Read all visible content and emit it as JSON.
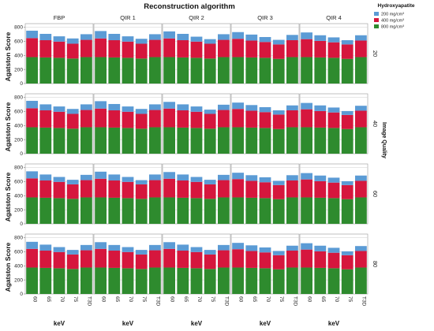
{
  "chart_data": {
    "type": "bar",
    "stacked": true,
    "title": "Reconstruction algorithm",
    "column_facets": [
      "FBP",
      "QIR 1",
      "QIR 2",
      "QIR 3",
      "QIR 4"
    ],
    "row_facets": [
      "20",
      "40",
      "60",
      "80"
    ],
    "row_facet_label": "Image Quality",
    "categories": [
      "60",
      "65",
      "70",
      "75",
      "T3D"
    ],
    "xlabel": "keV",
    "ylabel": "Agatston Score",
    "ylim": [
      0,
      850
    ],
    "yticks": [
      0,
      200,
      400,
      600,
      800
    ],
    "grid": true,
    "legend": {
      "title": "Hydroxyapatite",
      "position": "top-right",
      "entries": [
        {
          "name": "200 mg/cm³",
          "color": "#5b9bd5"
        },
        {
          "name": "400 mg/cm³",
          "color": "#d6163d"
        },
        {
          "name": "800 mg/cm³",
          "color": "#2e8b2e"
        }
      ]
    },
    "series_order_bottom_to_top": [
      "800 mg/cm³",
      "400 mg/cm³",
      "200 mg/cm³"
    ],
    "panels": [
      [
        {
          "s800": [
            375,
            370,
            365,
            355,
            375
          ],
          "s400": [
            270,
            245,
            230,
            210,
            245
          ],
          "s200": [
            105,
            90,
            75,
            75,
            80
          ]
        },
        {
          "s800": [
            375,
            370,
            365,
            355,
            375
          ],
          "s400": [
            265,
            245,
            230,
            210,
            245
          ],
          "s200": [
            105,
            90,
            75,
            70,
            80
          ]
        },
        {
          "s800": [
            375,
            370,
            365,
            355,
            375
          ],
          "s400": [
            265,
            245,
            230,
            210,
            245
          ],
          "s200": [
            100,
            90,
            70,
            65,
            80
          ]
        },
        {
          "s800": [
            375,
            370,
            365,
            350,
            375
          ],
          "s400": [
            260,
            240,
            225,
            205,
            240
          ],
          "s200": [
            95,
            85,
            70,
            65,
            75
          ]
        },
        {
          "s800": [
            375,
            370,
            365,
            350,
            375
          ],
          "s400": [
            255,
            235,
            220,
            205,
            235
          ],
          "s200": [
            95,
            80,
            70,
            60,
            75
          ]
        }
      ],
      [
        {
          "s800": [
            375,
            370,
            365,
            355,
            375
          ],
          "s400": [
            270,
            245,
            230,
            210,
            245
          ],
          "s200": [
            105,
            85,
            75,
            70,
            80
          ]
        },
        {
          "s800": [
            375,
            370,
            365,
            355,
            375
          ],
          "s400": [
            265,
            245,
            230,
            210,
            245
          ],
          "s200": [
            105,
            90,
            75,
            70,
            80
          ]
        },
        {
          "s800": [
            375,
            370,
            365,
            355,
            375
          ],
          "s400": [
            265,
            245,
            230,
            210,
            245
          ],
          "s200": [
            95,
            85,
            75,
            60,
            75
          ]
        },
        {
          "s800": [
            375,
            370,
            365,
            350,
            375
          ],
          "s400": [
            260,
            240,
            225,
            205,
            240
          ],
          "s200": [
            90,
            80,
            70,
            60,
            70
          ]
        },
        {
          "s800": [
            375,
            370,
            365,
            350,
            375
          ],
          "s400": [
            255,
            235,
            220,
            200,
            235
          ],
          "s200": [
            90,
            80,
            70,
            55,
            70
          ]
        }
      ],
      [
        {
          "s800": [
            375,
            370,
            365,
            355,
            375
          ],
          "s400": [
            270,
            245,
            230,
            205,
            245
          ],
          "s200": [
            100,
            85,
            70,
            65,
            75
          ]
        },
        {
          "s800": [
            375,
            370,
            365,
            355,
            375
          ],
          "s400": [
            265,
            245,
            230,
            205,
            245
          ],
          "s200": [
            100,
            85,
            70,
            60,
            80
          ]
        },
        {
          "s800": [
            375,
            370,
            365,
            355,
            375
          ],
          "s400": [
            265,
            245,
            230,
            205,
            245
          ],
          "s200": [
            95,
            85,
            70,
            65,
            75
          ]
        },
        {
          "s800": [
            375,
            370,
            365,
            350,
            375
          ],
          "s400": [
            260,
            240,
            225,
            200,
            240
          ],
          "s200": [
            90,
            80,
            70,
            60,
            75
          ]
        },
        {
          "s800": [
            375,
            370,
            365,
            350,
            375
          ],
          "s400": [
            255,
            235,
            220,
            200,
            235
          ],
          "s200": [
            90,
            80,
            70,
            55,
            75
          ]
        }
      ],
      [
        {
          "s800": [
            375,
            370,
            365,
            355,
            375
          ],
          "s400": [
            265,
            245,
            230,
            205,
            245
          ],
          "s200": [
            100,
            85,
            70,
            65,
            75
          ]
        },
        {
          "s800": [
            375,
            370,
            365,
            355,
            375
          ],
          "s400": [
            265,
            245,
            230,
            205,
            245
          ],
          "s200": [
            95,
            80,
            70,
            65,
            75
          ]
        },
        {
          "s800": [
            375,
            370,
            365,
            355,
            375
          ],
          "s400": [
            265,
            245,
            230,
            205,
            245
          ],
          "s200": [
            95,
            85,
            70,
            65,
            75
          ]
        },
        {
          "s800": [
            375,
            370,
            365,
            350,
            375
          ],
          "s400": [
            260,
            240,
            225,
            200,
            240
          ],
          "s200": [
            90,
            80,
            70,
            60,
            70
          ]
        },
        {
          "s800": [
            375,
            370,
            365,
            350,
            375
          ],
          "s400": [
            255,
            235,
            220,
            200,
            235
          ],
          "s200": [
            90,
            80,
            70,
            55,
            70
          ]
        }
      ]
    ]
  }
}
